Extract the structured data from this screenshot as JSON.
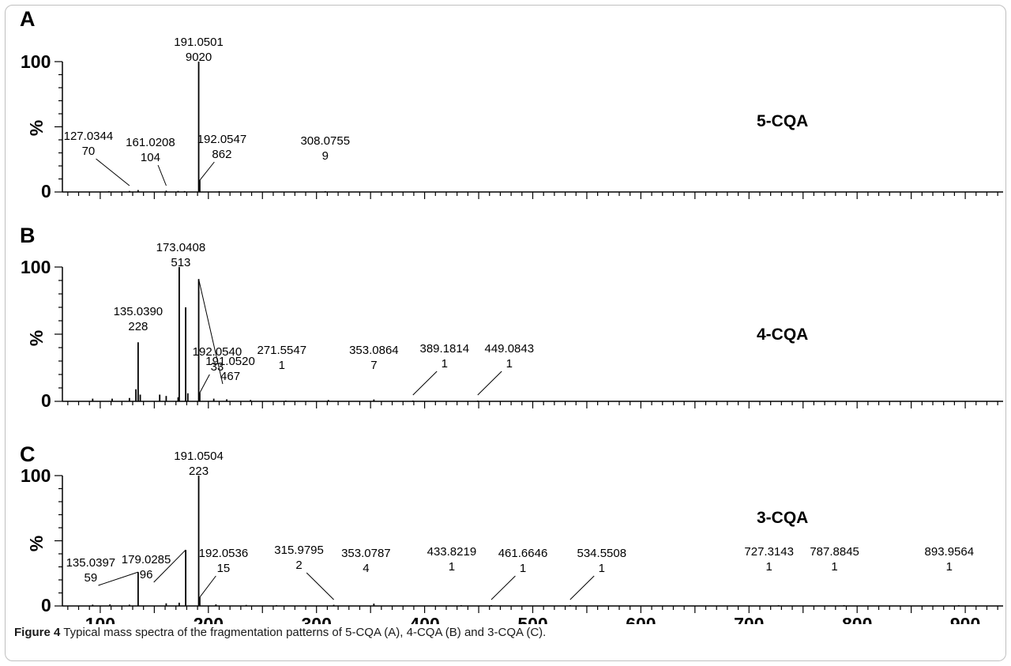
{
  "caption": {
    "label": "Figure 4",
    "text": "Typical mass spectra of the fragmentation patterns of 5-CQA (A), 4-CQA (B) and 3-CQA (C)."
  },
  "chart_data": [
    {
      "type": "bar",
      "panel": "A",
      "compound": "5-CQA",
      "ylabel": "%",
      "yticks": [
        "100",
        "0"
      ],
      "ylim": [
        0,
        100
      ],
      "xlim": [
        65,
        935
      ],
      "peaks": [
        {
          "mz": 191.0501,
          "rel": 100,
          "label": [
            "191.0501",
            "9020"
          ]
        },
        {
          "mz": 192.0547,
          "rel": 9,
          "label": [
            "192.0547",
            "862"
          ]
        },
        {
          "mz": 161.0208,
          "rel": 1,
          "label": [
            "161.0208",
            "104"
          ]
        },
        {
          "mz": 127.0344,
          "rel": 0.8,
          "label": [
            "127.0344",
            "70"
          ]
        },
        {
          "mz": 308.0755,
          "rel": 0.2,
          "label": [
            "308.0755",
            "9"
          ]
        },
        {
          "mz": 108,
          "rel": 0.6
        },
        {
          "mz": 135,
          "rel": 1.5
        },
        {
          "mz": 172,
          "rel": 0.8
        },
        {
          "mz": 178,
          "rel": 0.7
        },
        {
          "mz": 210,
          "rel": 0.5
        }
      ]
    },
    {
      "type": "bar",
      "panel": "B",
      "compound": "4-CQA",
      "ylabel": "%",
      "yticks": [
        "100",
        "0"
      ],
      "ylim": [
        0,
        100
      ],
      "xlim": [
        65,
        935
      ],
      "peaks": [
        {
          "mz": 173.0408,
          "rel": 100,
          "label": [
            "173.0408",
            "513"
          ]
        },
        {
          "mz": 191.052,
          "rel": 91,
          "label": [
            "191.0520",
            "467"
          ]
        },
        {
          "mz": 179.0,
          "rel": 70
        },
        {
          "mz": 135.039,
          "rel": 44,
          "label": [
            "135.0390",
            "228"
          ]
        },
        {
          "mz": 192.054,
          "rel": 6.4,
          "label": [
            "192.0540",
            "33"
          ]
        },
        {
          "mz": 271.5547,
          "rel": 0.2,
          "label": [
            "271.5547",
            "1"
          ]
        },
        {
          "mz": 353.0864,
          "rel": 1.4,
          "label": [
            "353.0864",
            "7"
          ]
        },
        {
          "mz": 389.1814,
          "rel": 0.2,
          "label": [
            "389.1814",
            "1"
          ]
        },
        {
          "mz": 449.0843,
          "rel": 0.2,
          "label": [
            "449.0843",
            "1"
          ]
        },
        {
          "mz": 133,
          "rel": 9
        },
        {
          "mz": 137,
          "rel": 5
        },
        {
          "mz": 155,
          "rel": 5
        },
        {
          "mz": 161,
          "rel": 4
        },
        {
          "mz": 172,
          "rel": 3
        },
        {
          "mz": 181,
          "rel": 6
        },
        {
          "mz": 93,
          "rel": 2
        },
        {
          "mz": 111,
          "rel": 2
        },
        {
          "mz": 127,
          "rel": 2.5
        },
        {
          "mz": 205,
          "rel": 2
        },
        {
          "mz": 217,
          "rel": 1.5
        },
        {
          "mz": 239,
          "rel": 1
        },
        {
          "mz": 311,
          "rel": 1
        }
      ]
    },
    {
      "type": "bar",
      "panel": "C",
      "compound": "3-CQA",
      "ylabel": "%",
      "yticks": [
        "100",
        "0"
      ],
      "ylim": [
        0,
        100
      ],
      "xlim": [
        65,
        935
      ],
      "xticks": [
        100,
        200,
        300,
        400,
        500,
        600,
        700,
        800,
        900
      ],
      "peaks": [
        {
          "mz": 191.0504,
          "rel": 100,
          "label": [
            "191.0504",
            "223"
          ]
        },
        {
          "mz": 179.0285,
          "rel": 43,
          "label": [
            "179.0285",
            "96"
          ]
        },
        {
          "mz": 135.0397,
          "rel": 26,
          "label": [
            "135.0397",
            "59"
          ]
        },
        {
          "mz": 192.0536,
          "rel": 6.7,
          "label": [
            "192.0536",
            "15"
          ]
        },
        {
          "mz": 315.9795,
          "rel": 0.9,
          "label": [
            "315.9795",
            "2"
          ]
        },
        {
          "mz": 353.0787,
          "rel": 1.8,
          "label": [
            "353.0787",
            "4"
          ]
        },
        {
          "mz": 433.8219,
          "rel": 0.45,
          "label": [
            "433.8219",
            "1"
          ]
        },
        {
          "mz": 461.6646,
          "rel": 0.45,
          "label": [
            "461.6646",
            "1"
          ]
        },
        {
          "mz": 534.5508,
          "rel": 0.45,
          "label": [
            "534.5508",
            "1"
          ]
        },
        {
          "mz": 727.3143,
          "rel": 0.45,
          "label": [
            "727.3143",
            "1"
          ]
        },
        {
          "mz": 787.8845,
          "rel": 0.45,
          "label": [
            "787.8845",
            "1"
          ]
        },
        {
          "mz": 893.9564,
          "rel": 0.45,
          "label": [
            "893.9564",
            "1"
          ]
        },
        {
          "mz": 93,
          "rel": 1
        },
        {
          "mz": 109,
          "rel": 1.2
        },
        {
          "mz": 127,
          "rel": 1
        },
        {
          "mz": 161,
          "rel": 2
        },
        {
          "mz": 173,
          "rel": 2.5
        },
        {
          "mz": 207,
          "rel": 1.2
        },
        {
          "mz": 235,
          "rel": 0.8
        },
        {
          "mz": 263,
          "rel": 0.6
        }
      ]
    }
  ]
}
